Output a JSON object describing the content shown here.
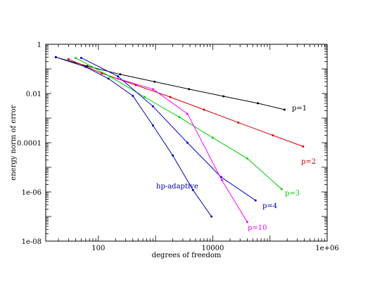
{
  "chart_data": {
    "type": "line",
    "xlabel": "degrees of freedom",
    "ylabel": "energy norm of error",
    "xscale": "log",
    "yscale": "log",
    "xlim": [
      12,
      1000000
    ],
    "ylim": [
      1e-08,
      1
    ],
    "x_tick_values": [
      100,
      10000,
      1000000
    ],
    "x_tick_labels": [
      "100",
      "10000",
      "1e+06"
    ],
    "y_tick_values": [
      1,
      0.01,
      0.0001,
      1e-06,
      1e-08
    ],
    "y_tick_labels": [
      "1",
      "0.01",
      "0.0001",
      "1e-06",
      "1e-08"
    ],
    "grid": false,
    "legend": "none",
    "series": [
      {
        "name": "p=1",
        "color": "#000000",
        "x": [
          18,
          64,
          240,
          960,
          3840,
          15400,
          61500,
          180000
        ],
        "y": [
          0.3,
          0.13,
          0.06,
          0.03,
          0.015,
          0.0077,
          0.004,
          0.0022
        ]
      },
      {
        "name": "p=2",
        "color": "#cc0000",
        "x": [
          30,
          115,
          450,
          1800,
          7000,
          28000,
          112000,
          380000
        ],
        "y": [
          0.25,
          0.066,
          0.022,
          0.0072,
          0.0022,
          0.00066,
          0.0002,
          7e-05
        ]
      },
      {
        "name": "p=3",
        "color": "#00cc00",
        "x": [
          40,
          160,
          640,
          2600,
          10000,
          40000,
          160000
        ],
        "y": [
          0.28,
          0.049,
          0.0072,
          0.0011,
          0.00016,
          2.3e-05,
          1.3e-06
        ]
      },
      {
        "name": "p=4",
        "color": "#0000cc",
        "x": [
          50,
          220,
          900,
          3600,
          14000,
          56000
        ],
        "y": [
          0.28,
          0.05,
          0.003,
          0.0001,
          4e-06,
          4.5e-07
        ]
      },
      {
        "name": "p=10",
        "color": "#ff00ff",
        "x": [
          220,
          900,
          3600,
          14400,
          40000
        ],
        "y": [
          0.04,
          0.015,
          0.0015,
          3e-06,
          6e-08
        ]
      },
      {
        "name": "hp-adaptive",
        "color": "#0000aa",
        "x": [
          18,
          60,
          150,
          400,
          900,
          2000,
          4500,
          9500
        ],
        "y": [
          0.3,
          0.12,
          0.04,
          0.008,
          0.0005,
          3e-05,
          1.2e-06,
          1e-07
        ]
      }
    ]
  }
}
